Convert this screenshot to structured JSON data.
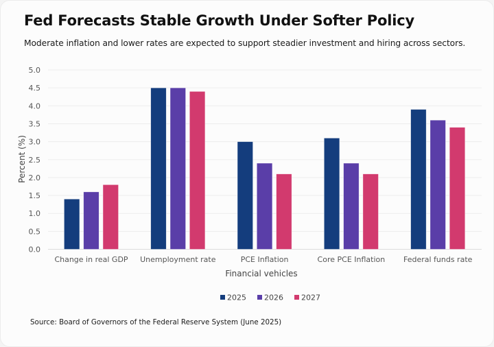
{
  "header": {
    "title": "Fed Forecasts Stable Growth Under Softer Policy",
    "subtitle": "Moderate inflation and lower rates are expected to support steadier investment and hiring across sectors."
  },
  "footer": {
    "source": "Source: Board of Governors of the Federal Reserve System (June 2025)"
  },
  "chart_data": {
    "type": "bar",
    "title": "Fed Forecasts Stable Growth Under Softer Policy",
    "subtitle": "Moderate inflation and lower rates are expected to support steadier investment and hiring across sectors.",
    "xlabel": "Financial vehicles",
    "ylabel": "Percent (%)",
    "ylim": [
      0,
      5.0
    ],
    "yticks": [
      "0.0",
      "0.5",
      "1.0",
      "1.5",
      "2.0",
      "2.5",
      "3.0",
      "3.5",
      "4.0",
      "4.5",
      "5.0"
    ],
    "grid": true,
    "legend_position": "bottom-center",
    "categories": [
      "Change in real GDP",
      "Unemployment rate",
      "PCE Inflation",
      "Core PCE Inflation",
      "Federal funds rate"
    ],
    "series": [
      {
        "name": "2025",
        "color": "#143d7d",
        "values": [
          1.4,
          4.5,
          3.0,
          3.1,
          3.9
        ]
      },
      {
        "name": "2026",
        "color": "#5a3ea8",
        "values": [
          1.6,
          4.5,
          2.4,
          2.4,
          3.6
        ]
      },
      {
        "name": "2027",
        "color": "#d23a6e",
        "values": [
          1.8,
          4.4,
          2.1,
          2.1,
          3.4
        ]
      }
    ]
  }
}
